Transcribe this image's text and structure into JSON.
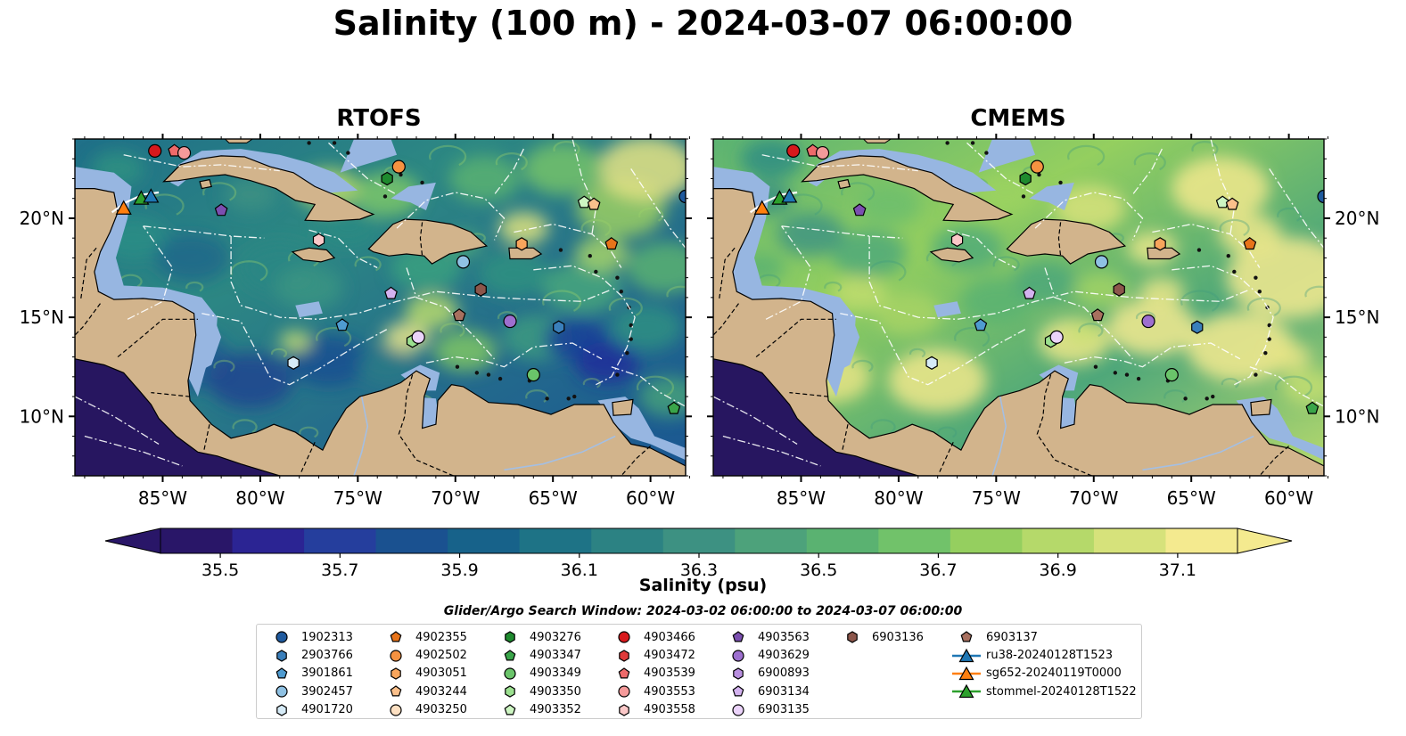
{
  "title": "Salinity (100 m) - 2024-03-07 06:00:00",
  "panels": [
    {
      "title": "RTOFS",
      "key": "rtofs"
    },
    {
      "title": "CMEMS",
      "key": "cmems"
    }
  ],
  "map": {
    "lon_range": [
      -89.5,
      -58.2
    ],
    "lat_range": [
      7,
      24
    ],
    "lon_ticks": [
      {
        "value": -85,
        "label": "85°W"
      },
      {
        "value": -80,
        "label": "80°W"
      },
      {
        "value": -75,
        "label": "75°W"
      },
      {
        "value": -70,
        "label": "70°W"
      },
      {
        "value": -65,
        "label": "65°W"
      },
      {
        "value": -60,
        "label": "60°W"
      }
    ],
    "lat_ticks": [
      {
        "value": 10,
        "label": "10°N"
      },
      {
        "value": 15,
        "label": "15°N"
      },
      {
        "value": 20,
        "label": "20°N"
      }
    ],
    "colors": {
      "land": "#d2b48c",
      "shelf": "#97b6e1",
      "pacific": "#271660",
      "eez": "#ffffff"
    }
  },
  "colorbar": {
    "label": "Salinity (psu)",
    "min": 35.4,
    "max": 37.2,
    "ticks": [
      {
        "value": 35.5,
        "label": "35.5"
      },
      {
        "value": 35.7,
        "label": "35.7"
      },
      {
        "value": 35.9,
        "label": "35.9"
      },
      {
        "value": 36.1,
        "label": "36.1"
      },
      {
        "value": 36.3,
        "label": "36.3"
      },
      {
        "value": 36.5,
        "label": "36.5"
      },
      {
        "value": 36.7,
        "label": "36.7"
      },
      {
        "value": 36.9,
        "label": "36.9"
      },
      {
        "value": 37.1,
        "label": "37.1"
      }
    ],
    "colors": [
      "#291668",
      "#2b2493",
      "#253e9d",
      "#1a5190",
      "#17628a",
      "#1e7386",
      "#2c8283",
      "#3d9182",
      "#4da27b",
      "#5ab271",
      "#71c26a",
      "#95cf5f",
      "#b5d96a",
      "#d6e27b",
      "#f4ea8f"
    ]
  },
  "search_window": "Glider/Argo Search Window: 2024-03-02 06:00:00 to 2024-03-07 06:00:00",
  "legend": [
    {
      "label": "1902313",
      "marker": "circle",
      "color": "#1f5a9e"
    },
    {
      "label": "2903766",
      "marker": "hexagon",
      "color": "#3a7fbb"
    },
    {
      "label": "3901861",
      "marker": "pentagon",
      "color": "#4f9bd0"
    },
    {
      "label": "3902457",
      "marker": "circle",
      "color": "#8fc1e3"
    },
    {
      "label": "4901720",
      "marker": "hexagon",
      "color": "#d6ebf7"
    },
    {
      "label": "4902355",
      "marker": "pentagon",
      "color": "#e8741a"
    },
    {
      "label": "4902502",
      "marker": "circle",
      "color": "#f59241"
    },
    {
      "label": "4903051",
      "marker": "hexagon",
      "color": "#f8a55c"
    },
    {
      "label": "4903244",
      "marker": "pentagon",
      "color": "#fbc08b"
    },
    {
      "label": "4903250",
      "marker": "circle",
      "color": "#fde0c2"
    },
    {
      "label": "4903276",
      "marker": "hexagon",
      "color": "#1e8a2e"
    },
    {
      "label": "4903347",
      "marker": "pentagon",
      "color": "#3aa54a"
    },
    {
      "label": "4903349",
      "marker": "circle",
      "color": "#6ac46a"
    },
    {
      "label": "4903350",
      "marker": "hexagon",
      "color": "#9be08f"
    },
    {
      "label": "4903352",
      "marker": "pentagon",
      "color": "#cdf5c2"
    },
    {
      "label": "4903466",
      "marker": "circle",
      "color": "#d7191c"
    },
    {
      "label": "4903472",
      "marker": "hexagon",
      "color": "#e03a3a"
    },
    {
      "label": "4903539",
      "marker": "pentagon",
      "color": "#ee6a6a"
    },
    {
      "label": "4903553",
      "marker": "circle",
      "color": "#f59a9a"
    },
    {
      "label": "4903558",
      "marker": "hexagon",
      "color": "#fbc8c8"
    },
    {
      "label": "4903563",
      "marker": "pentagon",
      "color": "#7b4fb0"
    },
    {
      "label": "4903629",
      "marker": "circle",
      "color": "#9d6fcf"
    },
    {
      "label": "6900893",
      "marker": "hexagon",
      "color": "#b98fe0"
    },
    {
      "label": "6903134",
      "marker": "pentagon",
      "color": "#d3b2ef"
    },
    {
      "label": "6903135",
      "marker": "circle",
      "color": "#ebd3fa"
    },
    {
      "label": "6903136",
      "marker": "hexagon",
      "color": "#8c564b"
    },
    {
      "label": "6903137",
      "marker": "pentagon",
      "color": "#a8705f"
    },
    {
      "label": "ru38-20240128T1523",
      "marker": "triangle-line",
      "color": "#1f77b4"
    },
    {
      "label": "sg652-20240119T0000",
      "marker": "triangle-line",
      "color": "#ff7f0e"
    },
    {
      "label": "stommel-20240128T1522",
      "marker": "triangle-line",
      "color": "#2ca02c"
    }
  ],
  "markers": [
    {
      "id": "1902313",
      "lon": -58.2,
      "lat": 21.1
    },
    {
      "id": "4903466",
      "lon": -85.4,
      "lat": 23.4
    },
    {
      "id": "4903539",
      "lon": -84.4,
      "lat": 23.4
    },
    {
      "id": "4903553",
      "lon": -83.9,
      "lat": 23.3
    },
    {
      "id": "4902502",
      "lon": -72.9,
      "lat": 22.6
    },
    {
      "id": "4903276",
      "lon": -73.5,
      "lat": 22.0
    },
    {
      "id": "4903563",
      "lon": -82.0,
      "lat": 20.4
    },
    {
      "id": "4903352",
      "lon": -63.4,
      "lat": 20.8
    },
    {
      "id": "4903244",
      "lon": -62.9,
      "lat": 20.7
    },
    {
      "id": "4903558",
      "lon": -77.0,
      "lat": 18.9
    },
    {
      "id": "4903051",
      "lon": -66.6,
      "lat": 18.7
    },
    {
      "id": "4902355",
      "lon": -62.0,
      "lat": 18.7
    },
    {
      "id": "3902457",
      "lon": -69.6,
      "lat": 17.8
    },
    {
      "id": "6903134",
      "lon": -73.3,
      "lat": 16.2
    },
    {
      "id": "6903136",
      "lon": -68.7,
      "lat": 16.4
    },
    {
      "id": "6903137",
      "lon": -69.8,
      "lat": 15.1
    },
    {
      "id": "4903629",
      "lon": -67.2,
      "lat": 14.8
    },
    {
      "id": "3901861",
      "lon": -75.8,
      "lat": 14.6
    },
    {
      "id": "2903766",
      "lon": -64.7,
      "lat": 14.5
    },
    {
      "id": "4903350",
      "lon": -72.2,
      "lat": 13.8
    },
    {
      "id": "6903135",
      "lon": -71.9,
      "lat": 14.0
    },
    {
      "id": "4901720",
      "lon": -78.3,
      "lat": 12.7
    },
    {
      "id": "4903349",
      "lon": -66.0,
      "lat": 12.1
    },
    {
      "id": "4903347",
      "lon": -58.8,
      "lat": 10.4
    },
    {
      "id": "sg652-20240119T0000",
      "lon": -87.0,
      "lat": 20.5
    },
    {
      "id": "stommel-20240128T1522",
      "lon": -86.1,
      "lat": 21.0
    },
    {
      "id": "ru38-20240128T1523",
      "lon": -85.6,
      "lat": 21.1
    }
  ]
}
